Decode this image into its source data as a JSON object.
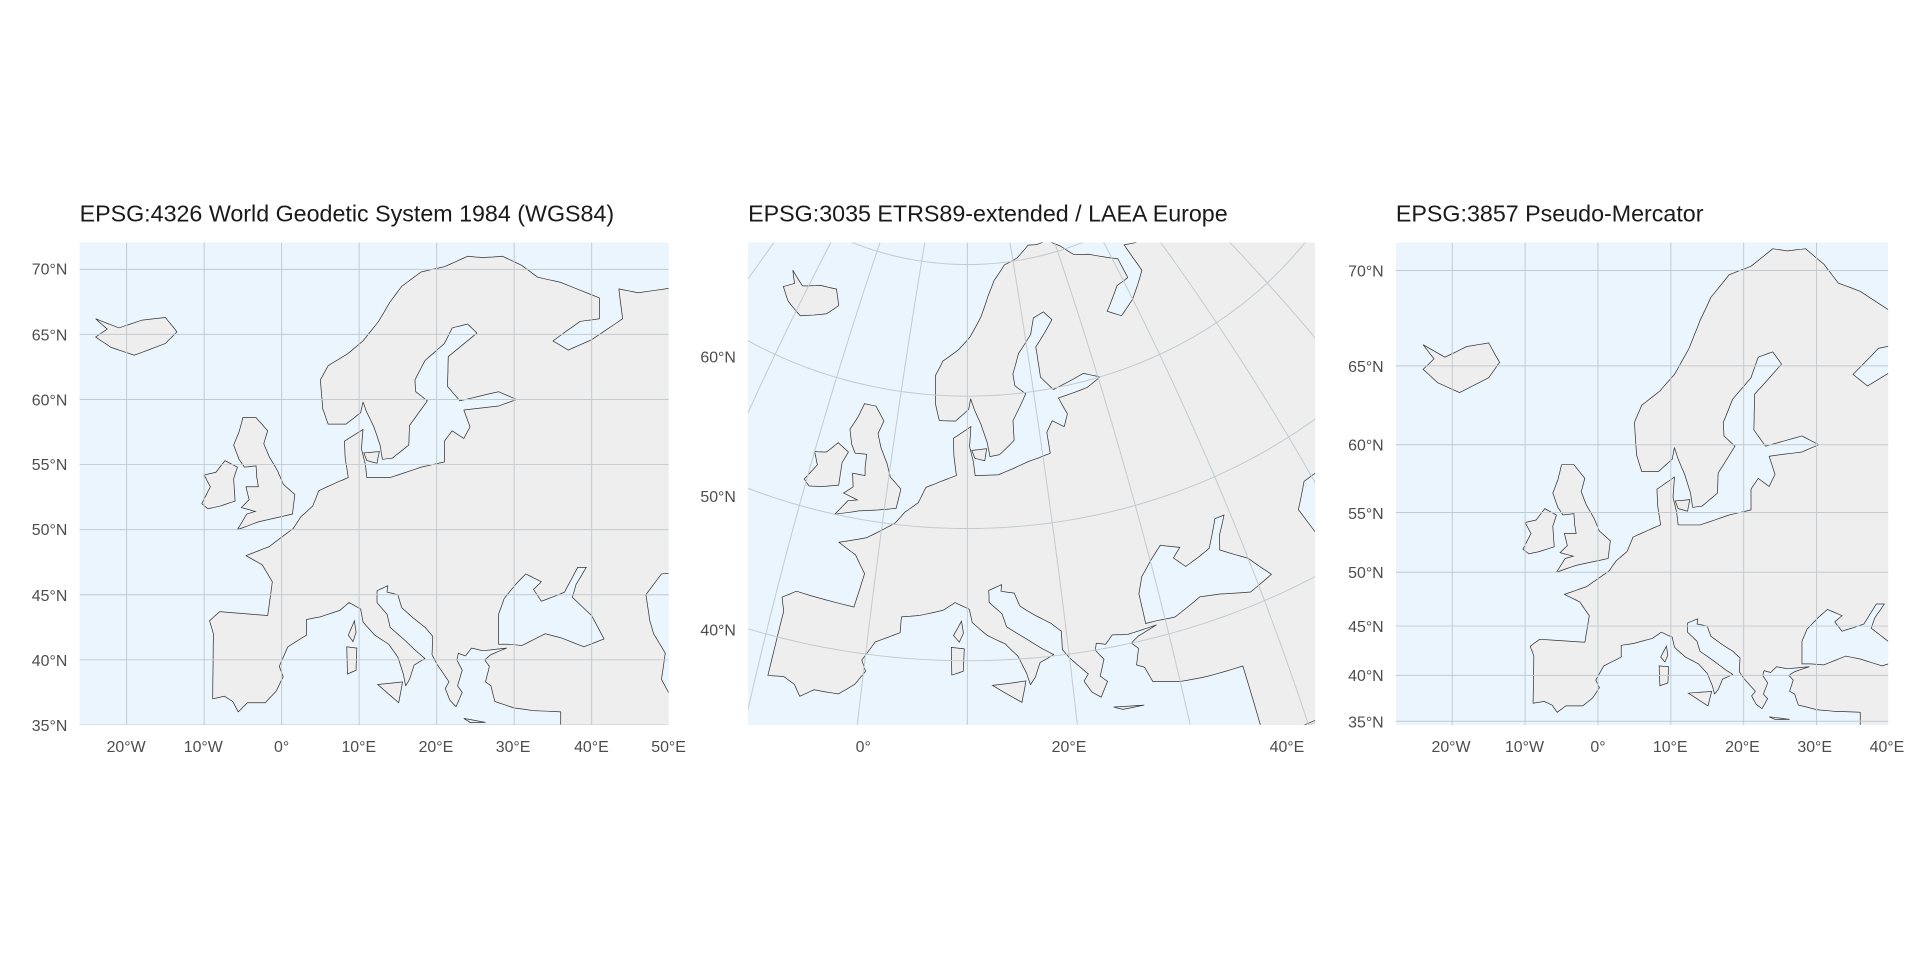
{
  "panels": [
    {
      "title": "EPSG:4326 World Geodetic System 1984 (WGS84)",
      "y_labels": [
        "70°N",
        "65°N",
        "60°N",
        "55°N",
        "50°N",
        "45°N",
        "40°N",
        "35°N"
      ],
      "x_labels": [
        "20°W",
        "10°W",
        "0°",
        "10°E",
        "20°E",
        "30°E",
        "40°E",
        "50°E"
      ]
    },
    {
      "title": "EPSG:3035 ETRS89-extended / LAEA Europe",
      "y_labels": [
        "60°N",
        "50°N",
        "40°N"
      ],
      "x_labels": [
        "0°",
        "20°E",
        "40°E"
      ]
    },
    {
      "title": "EPSG:3857 Pseudo-Mercator",
      "y_labels": [
        "70°N",
        "65°N",
        "60°N",
        "55°N",
        "50°N",
        "45°N",
        "40°N",
        "35°N"
      ],
      "x_labels": [
        "20°W",
        "10°W",
        "0°",
        "10°E",
        "20°E",
        "30°E",
        "40°E"
      ]
    }
  ]
}
